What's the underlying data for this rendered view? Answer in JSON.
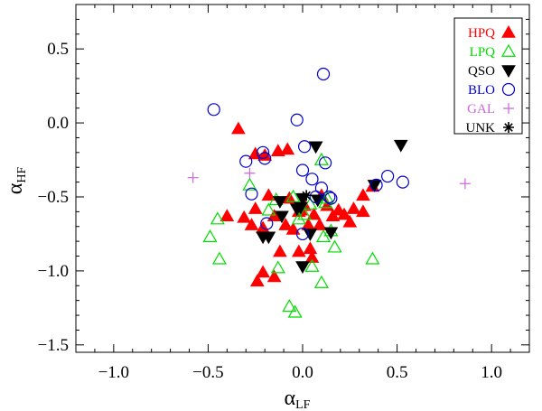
{
  "chart_data": {
    "type": "scatter",
    "xlabel": "α",
    "xlabel_sub": "LF",
    "ylabel": "α",
    "ylabel_sub": "HF",
    "xlim": [
      -1.2,
      1.2
    ],
    "ylim": [
      -1.55,
      0.8
    ],
    "x_ticks": [
      {
        "value": -1.0,
        "label": "−1.0"
      },
      {
        "value": -0.5,
        "label": "−0.5"
      },
      {
        "value": 0.0,
        "label": "0.0"
      },
      {
        "value": 0.5,
        "label": "0.5"
      },
      {
        "value": 1.0,
        "label": "1.0"
      }
    ],
    "y_ticks": [
      {
        "value": 0.5,
        "label": "0.5"
      },
      {
        "value": 0.0,
        "label": "0.0"
      },
      {
        "value": -0.5,
        "label": "−0.5"
      },
      {
        "value": -1.0,
        "label": "−1.0"
      },
      {
        "value": -1.5,
        "label": "−1.5"
      }
    ],
    "legend_position": "top-right",
    "series": [
      {
        "name": "HPQ",
        "marker": "filled-triangle-up",
        "color": "#ff0000",
        "points": [
          [
            -0.34,
            -0.04
          ],
          [
            -0.25,
            -0.21
          ],
          [
            -0.2,
            -0.22
          ],
          [
            -0.13,
            -0.19
          ],
          [
            -0.08,
            -0.18
          ],
          [
            -0.31,
            -0.64
          ],
          [
            -0.27,
            -0.69
          ],
          [
            -0.25,
            -0.58
          ],
          [
            -0.21,
            -0.71
          ],
          [
            -0.18,
            -0.49
          ],
          [
            -0.15,
            -0.63
          ],
          [
            -0.12,
            -0.87
          ],
          [
            -0.09,
            -0.69
          ],
          [
            -0.07,
            -0.51
          ],
          [
            -0.05,
            -0.72
          ],
          [
            -0.02,
            -0.6
          ],
          [
            0.01,
            -0.56
          ],
          [
            0.03,
            -0.69
          ],
          [
            0.06,
            -0.62
          ],
          [
            0.09,
            -0.69
          ],
          [
            0.1,
            -0.49
          ],
          [
            0.13,
            -0.56
          ],
          [
            0.16,
            -0.63
          ],
          [
            0.19,
            -0.59
          ],
          [
            0.22,
            -0.62
          ],
          [
            0.25,
            -0.67
          ],
          [
            0.27,
            -0.58
          ],
          [
            0.32,
            -0.6
          ],
          [
            0.32,
            -0.49
          ],
          [
            0.37,
            -0.43
          ],
          [
            -0.4,
            -0.63
          ],
          [
            -0.24,
            -1.07
          ],
          [
            -0.21,
            -1.01
          ],
          [
            -0.15,
            -1.04
          ],
          [
            -0.02,
            -0.87
          ],
          [
            0.04,
            -0.85
          ],
          [
            0.05,
            -0.91
          ],
          [
            -0.01,
            -0.59
          ]
        ]
      },
      {
        "name": "LPQ",
        "marker": "open-triangle-up",
        "color": "#00dd00",
        "points": [
          [
            -0.45,
            -0.65
          ],
          [
            -0.49,
            -0.77
          ],
          [
            -0.44,
            -0.92
          ],
          [
            -0.28,
            -0.42
          ],
          [
            -0.18,
            -0.59
          ],
          [
            -0.14,
            -0.52
          ],
          [
            -0.05,
            -0.5
          ],
          [
            -0.02,
            -0.65
          ],
          [
            0.01,
            -0.62
          ],
          [
            0.04,
            -0.55
          ],
          [
            0.1,
            -0.25
          ],
          [
            0.13,
            -0.51
          ],
          [
            0.12,
            -0.54
          ],
          [
            0.15,
            -0.73
          ],
          [
            0.17,
            -0.84
          ],
          [
            0.11,
            -0.77
          ],
          [
            0.05,
            -0.97
          ],
          [
            0.1,
            -1.08
          ],
          [
            -0.13,
            -0.98
          ],
          [
            -0.07,
            -1.24
          ],
          [
            -0.04,
            -1.28
          ],
          [
            0.37,
            -0.92
          ]
        ]
      },
      {
        "name": "QSO",
        "marker": "filled-triangle-down",
        "color": "#000000",
        "points": [
          [
            -0.21,
            -0.77
          ],
          [
            -0.18,
            -0.77
          ],
          [
            -0.12,
            -0.53
          ],
          [
            -0.11,
            -0.63
          ],
          [
            -0.03,
            -0.58
          ],
          [
            0.0,
            -0.51
          ],
          [
            0.04,
            -0.75
          ],
          [
            0.07,
            -0.16
          ],
          [
            0.08,
            -0.52
          ],
          [
            0.15,
            -0.74
          ],
          [
            0.38,
            -0.42
          ],
          [
            0.52,
            -0.15
          ],
          [
            0.0,
            -0.97
          ],
          [
            -0.01,
            -0.57
          ]
        ]
      },
      {
        "name": "BLO",
        "marker": "open-circle",
        "color": "#0000cc",
        "points": [
          [
            0.11,
            0.33
          ],
          [
            -0.47,
            0.09
          ],
          [
            -0.3,
            -0.26
          ],
          [
            -0.27,
            -0.48
          ],
          [
            -0.21,
            -0.2
          ],
          [
            -0.2,
            -0.24
          ],
          [
            -0.19,
            -0.68
          ],
          [
            -0.03,
            0.02
          ],
          [
            0.01,
            -0.16
          ],
          [
            0.0,
            -0.32
          ],
          [
            0.05,
            -0.38
          ],
          [
            0.12,
            -0.27
          ],
          [
            0.1,
            -0.44
          ],
          [
            0.14,
            -0.5
          ],
          [
            0.15,
            -0.51
          ],
          [
            0.07,
            -0.5
          ],
          [
            0.0,
            -0.75
          ],
          [
            0.45,
            -0.36
          ],
          [
            0.53,
            -0.4
          ],
          [
            0.39,
            -0.42
          ]
        ]
      },
      {
        "name": "GAL",
        "marker": "plus",
        "color": "#cc66dd",
        "points": [
          [
            -0.58,
            -0.37
          ],
          [
            -0.28,
            -0.34
          ],
          [
            0.86,
            -0.41
          ]
        ]
      },
      {
        "name": "UNK",
        "marker": "asterisk",
        "color": "#000000",
        "points": [
          [
            0.02,
            -0.49
          ]
        ]
      }
    ]
  }
}
